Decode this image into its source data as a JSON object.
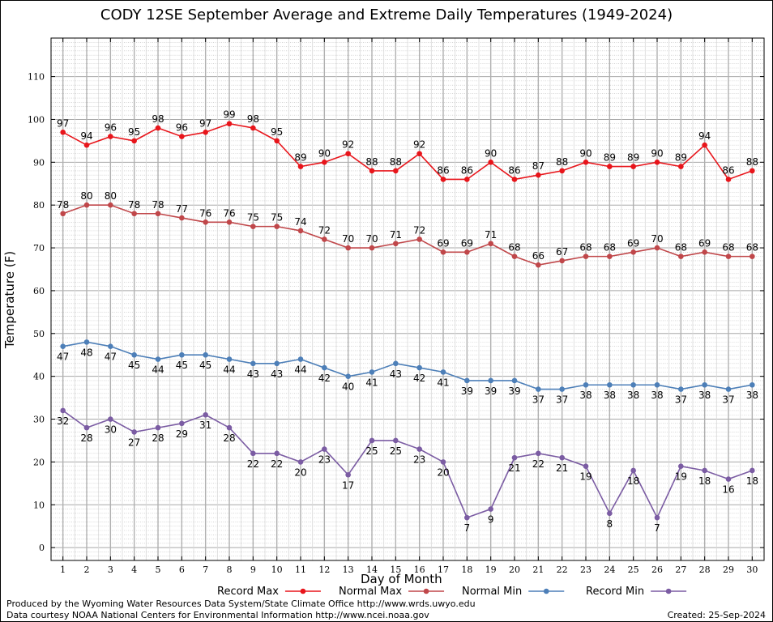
{
  "chart_data": {
    "type": "line",
    "title": "CODY 12SE September Average and Extreme Daily Temperatures (1949-2024)",
    "xlabel": "Day of Month",
    "ylabel": "Temperature (F)",
    "ylim": [
      -3,
      119
    ],
    "yticks": [
      0,
      10,
      20,
      30,
      40,
      50,
      60,
      70,
      80,
      90,
      100,
      110
    ],
    "x": [
      1,
      2,
      3,
      4,
      5,
      6,
      7,
      8,
      9,
      10,
      11,
      12,
      13,
      14,
      15,
      16,
      17,
      18,
      19,
      20,
      21,
      22,
      23,
      24,
      25,
      26,
      27,
      28,
      29,
      30
    ],
    "grid": true,
    "legend_placement": "bottom",
    "series": [
      {
        "name": "Record Max",
        "color": "#e8151b",
        "label_position": "above",
        "values": [
          97,
          94,
          96,
          95,
          98,
          96,
          97,
          99,
          98,
          95,
          89,
          90,
          92,
          88,
          88,
          92,
          86,
          86,
          90,
          86,
          87,
          88,
          90,
          89,
          89,
          90,
          89,
          94,
          86,
          88
        ]
      },
      {
        "name": "Normal Max",
        "color": "#c0474a",
        "label_position": "above",
        "values": [
          78,
          80,
          80,
          78,
          78,
          77,
          76,
          76,
          75,
          75,
          74,
          72,
          70,
          70,
          71,
          72,
          69,
          69,
          71,
          68,
          66,
          67,
          68,
          68,
          69,
          70,
          68,
          69,
          68,
          68
        ]
      },
      {
        "name": "Normal Min",
        "color": "#4d7fb8",
        "label_position": "below",
        "values": [
          47,
          48,
          47,
          45,
          44,
          45,
          45,
          44,
          43,
          43,
          44,
          42,
          40,
          41,
          43,
          42,
          41,
          39,
          39,
          39,
          37,
          37,
          38,
          38,
          38,
          38,
          37,
          38,
          37,
          38
        ]
      },
      {
        "name": "Record Min",
        "color": "#7b5ca3",
        "label_position": "below",
        "values": [
          32,
          28,
          30,
          27,
          28,
          29,
          31,
          28,
          22,
          22,
          20,
          23,
          17,
          25,
          25,
          23,
          20,
          7,
          9,
          21,
          22,
          21,
          19,
          8,
          18,
          7,
          19,
          18,
          16,
          18
        ]
      }
    ]
  },
  "footer": {
    "credit_line1": "Produced by the Wyoming Water Resources Data System/State Climate Office http://www.wrds.uwyo.edu",
    "credit_line2": "Data courtesy NOAA National Centers for Environmental Information http://www.ncei.noaa.gov",
    "created": "Created:  25-Sep-2024"
  }
}
